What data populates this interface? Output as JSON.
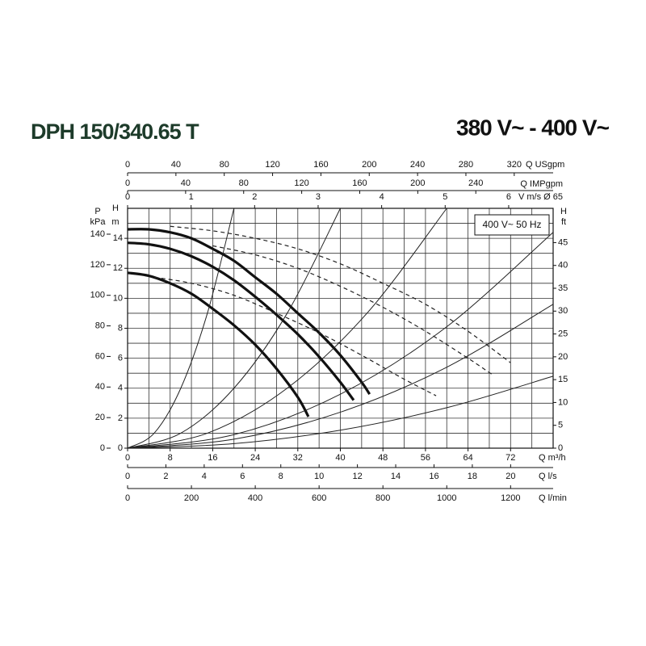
{
  "chart_data": {
    "type": "line",
    "title": "DPH 150/340.65 T",
    "subtitle": "380 V~ - 400 V~",
    "legend_box": "400 V~ 50 Hz",
    "xlabel": "Q m³/h",
    "ylabel": [
      "H",
      "m"
    ],
    "xlim": [
      0,
      80
    ],
    "ylim": [
      0,
      16
    ],
    "xticks": [
      0,
      8,
      16,
      24,
      32,
      40,
      48,
      56,
      64,
      72
    ],
    "yticks": [
      0,
      2,
      4,
      6,
      8,
      10,
      12,
      14
    ],
    "xgrid": [
      0,
      4,
      8,
      12,
      16,
      20,
      24,
      28,
      32,
      36,
      40,
      44,
      48,
      52,
      56,
      60,
      64,
      68,
      72,
      76,
      80
    ],
    "ygrid": [
      0,
      1,
      2,
      3,
      4,
      5,
      6,
      7,
      8,
      9,
      10,
      11,
      12,
      13,
      14,
      15,
      16
    ],
    "grid": true,
    "extra_axes": [
      {
        "label": "Q USgpm",
        "position": "top",
        "lim": [
          0,
          352.2
        ],
        "ticks": [
          0,
          40,
          80,
          120,
          160,
          200,
          240,
          280,
          320
        ]
      },
      {
        "label": "Q IMPgpm",
        "position": "top",
        "lim": [
          0,
          293.3
        ],
        "ticks": [
          0,
          40,
          80,
          120,
          160,
          200,
          240
        ]
      },
      {
        "label": "V m/s Ø 65",
        "position": "top",
        "lim": [
          0,
          6.7
        ],
        "ticks": [
          0,
          1,
          2,
          3,
          4,
          5,
          6
        ]
      },
      {
        "label": "Q l/s",
        "position": "bottom",
        "lim": [
          0,
          22.22
        ],
        "ticks": [
          0,
          2,
          4,
          6,
          8,
          10,
          12,
          14,
          16,
          18,
          20
        ]
      },
      {
        "label": "Q l/min",
        "position": "bottom",
        "lim": [
          0,
          1333.3
        ],
        "ticks": [
          0,
          200,
          400,
          600,
          800,
          1000,
          1200
        ]
      },
      {
        "label": [
          "P",
          "kPa"
        ],
        "position": "left",
        "lim": [
          0,
          156.9
        ],
        "ticks": [
          0,
          20,
          40,
          60,
          80,
          100,
          120,
          140
        ]
      },
      {
        "label": [
          "H",
          "ft"
        ],
        "position": "right",
        "lim": [
          0,
          52.5
        ],
        "ticks": [
          0,
          5,
          10,
          15,
          20,
          25,
          30,
          35,
          40,
          45
        ]
      }
    ],
    "series": [
      {
        "style": "thick",
        "color": "#111111",
        "x": [
          0,
          4,
          8,
          12,
          16,
          20,
          24,
          28,
          32,
          36,
          40,
          44,
          45.5
        ],
        "values": [
          14.6,
          14.6,
          14.4,
          14.0,
          13.3,
          12.5,
          11.4,
          10.3,
          9.0,
          7.7,
          6.2,
          4.4,
          3.6
        ]
      },
      {
        "style": "thick",
        "color": "#111111",
        "x": [
          0,
          4,
          8,
          12,
          16,
          20,
          24,
          28,
          32,
          36,
          40,
          42.5
        ],
        "values": [
          13.7,
          13.6,
          13.3,
          12.8,
          12.1,
          11.2,
          10.1,
          8.9,
          7.6,
          6.1,
          4.4,
          3.2
        ]
      },
      {
        "style": "thick",
        "color": "#111111",
        "x": [
          0,
          4,
          8,
          12,
          16,
          20,
          24,
          28,
          32,
          34
        ],
        "values": [
          11.7,
          11.5,
          11.0,
          10.3,
          9.3,
          8.2,
          6.9,
          5.3,
          3.4,
          2.1
        ]
      },
      {
        "style": "dashed",
        "color": "#222222",
        "x": [
          8,
          16,
          24,
          32,
          40,
          48,
          56,
          64,
          72
        ],
        "values": [
          14.8,
          14.5,
          14.0,
          13.3,
          12.3,
          11.0,
          9.6,
          7.8,
          5.7
        ]
      },
      {
        "style": "dashed",
        "color": "#222222",
        "x": [
          16,
          24,
          32,
          40,
          48,
          56,
          64,
          68.6
        ],
        "values": [
          13.5,
          12.9,
          12.0,
          10.8,
          9.4,
          7.8,
          6.0,
          4.9
        ]
      },
      {
        "style": "dashed",
        "color": "#222222",
        "x": [
          5,
          12,
          20,
          28,
          36,
          44,
          52,
          58
        ],
        "values": [
          11.4,
          11.0,
          10.2,
          9.0,
          7.7,
          6.2,
          4.6,
          3.5
        ]
      },
      {
        "style": "thin",
        "color": "#222222",
        "x": [
          0,
          5,
          10,
          15,
          20
        ],
        "values": [
          0,
          1,
          4,
          9,
          16
        ]
      },
      {
        "style": "thin",
        "color": "#222222",
        "x": [
          0,
          10,
          20,
          30,
          40
        ],
        "values": [
          0,
          1,
          4,
          9,
          16
        ]
      },
      {
        "style": "thin",
        "color": "#222222",
        "x": [
          0,
          15,
          30,
          45,
          60
        ],
        "values": [
          0,
          1,
          4,
          9,
          16
        ]
      },
      {
        "style": "thin",
        "color": "#222222",
        "x": [
          0,
          20,
          40,
          60,
          80
        ],
        "values": [
          0,
          0.9,
          3.6,
          8.1,
          14.4
        ]
      },
      {
        "style": "thin",
        "color": "#222222",
        "x": [
          0,
          20,
          40,
          60,
          80
        ],
        "values": [
          0,
          0.6,
          2.4,
          5.4,
          9.6
        ]
      },
      {
        "style": "thin",
        "color": "#222222",
        "x": [
          0,
          20,
          40,
          60,
          80
        ],
        "values": [
          0,
          0.3,
          1.2,
          2.7,
          4.8
        ]
      }
    ]
  }
}
